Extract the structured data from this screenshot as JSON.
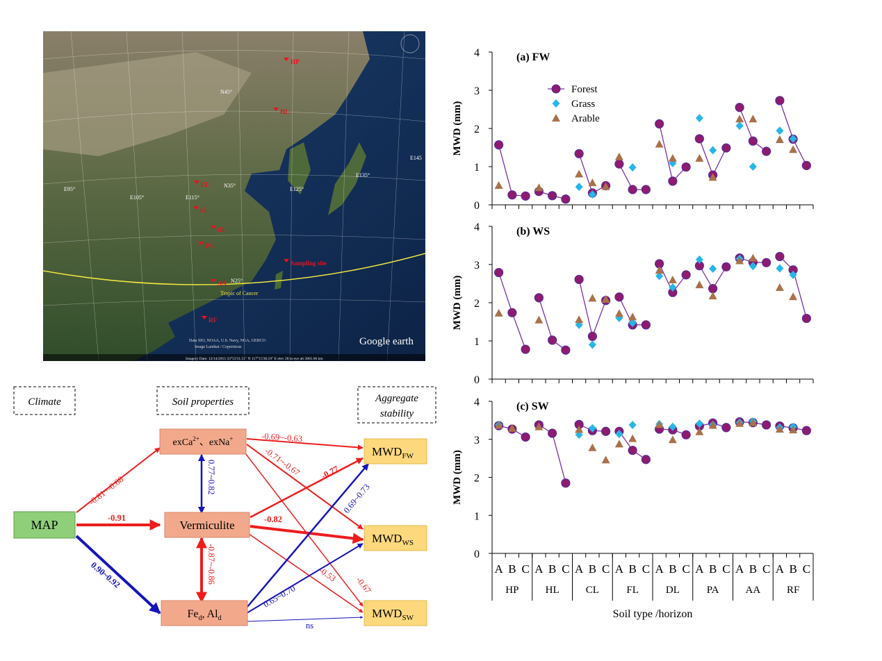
{
  "map": {
    "sites": [
      "HP",
      "HL",
      "CL",
      "FL",
      "DL",
      "PA",
      "AA",
      "RF"
    ],
    "site_legend": "Sampling site",
    "latitude_labels": [
      "N45°",
      "N35°",
      "N25°"
    ],
    "longitude_labels": [
      "E95°",
      "E105°",
      "E115°",
      "E125°",
      "E135°",
      "E145"
    ],
    "tropic_label": "Tropic of Cancer",
    "credits": "Data SIO, NOAA, U.S. Navy, NGA, GEBCO",
    "credits2": "Image Landsat / Copernicus",
    "status_bar": "Imagery Date: 12/14/2015   33°53'31.51\" N 117°15'38.19\" E elev  28 m   eye alt 3801.06 km",
    "logo": "Google earth"
  },
  "diagram": {
    "group_titles": {
      "climate": "Climate",
      "soil": "Soil properties",
      "agg1": "Aggregate",
      "agg2": "stability"
    },
    "nodes": {
      "map": "MAP",
      "ex_a": "exCa",
      "ex_sup_a": "2+",
      "ex_mid": "、exNa",
      "ex_sup_b": "+",
      "verm": "Vermiculite",
      "fe_a": "Fe",
      "fe_sub_a": "d",
      "fe_mid": ", Al",
      "fe_sub_b": "d",
      "mwd": "MWD",
      "sub_fw": "FW",
      "sub_ws": "WS",
      "sub_sw": "SW"
    },
    "edge_labels": {
      "map_ex": "-0.81~-0.68",
      "map_verm": "-0.91",
      "map_fe": "0.90~0.92",
      "ex_verm": "0.77~0.82",
      "verm_fe": "-0.87~-0.86",
      "ex_fw": "-0.69~-0.63",
      "ex_ws": "-0.71~-0.67",
      "verm_fw": "-0.77",
      "verm_ws": "-0.82",
      "verm_sw": "-0.53",
      "ex_sw": "-0.67",
      "fe_fw": "0.69~0.73",
      "fe_ws": "0.65~0.70",
      "fe_sw": "ns"
    },
    "colors": {
      "negative": "#ee1c1c",
      "positive": "#1515bb",
      "map_fill": "#8fcf7a",
      "soil_fill": "#f2a98b",
      "mwd_fill": "#fed87d"
    }
  },
  "chart_data": [
    {
      "type": "scatter",
      "title": "(a) FW",
      "ylabel": "MWD (mm)",
      "ylim": [
        0,
        4
      ],
      "yticks": [
        "0",
        "1",
        "2",
        "3",
        "4"
      ],
      "soil_types": [
        "HP",
        "HL",
        "CL",
        "FL",
        "DL",
        "PA",
        "AA",
        "RF"
      ],
      "horizons": [
        "A",
        "B",
        "C"
      ],
      "series": [
        {
          "name": "Forest",
          "values": [
            1.57,
            0.26,
            0.23,
            0.35,
            0.24,
            0.15,
            1.34,
            0.31,
            0.5,
            1.07,
            0.4,
            0.4,
            2.12,
            0.62,
            0.99,
            1.73,
            0.78,
            1.49,
            2.55,
            1.67,
            1.4,
            2.73,
            1.72,
            1.03
          ]
        },
        {
          "name": "Grass",
          "values": [
            null,
            null,
            null,
            null,
            null,
            null,
            0.47,
            0.27,
            null,
            null,
            0.98,
            null,
            null,
            1.09,
            null,
            2.27,
            1.43,
            null,
            2.07,
            1.0,
            null,
            1.94,
            1.73,
            null
          ]
        },
        {
          "name": "Arable",
          "values": [
            0.51,
            null,
            null,
            0.45,
            null,
            null,
            0.81,
            0.58,
            0.48,
            1.26,
            null,
            null,
            1.59,
            1.22,
            null,
            1.22,
            0.72,
            null,
            2.25,
            2.25,
            null,
            1.71,
            1.45,
            null
          ]
        }
      ]
    },
    {
      "type": "scatter",
      "title": "(b) WS",
      "ylabel": "MWD (mm)",
      "ylim": [
        0,
        4
      ],
      "yticks": [
        "0",
        "1",
        "2",
        "3",
        "4"
      ],
      "soil_types": [
        "HP",
        "HL",
        "CL",
        "FL",
        "DL",
        "PA",
        "AA",
        "RF"
      ],
      "horizons": [
        "A",
        "B",
        "C"
      ],
      "series": [
        {
          "name": "Forest",
          "values": [
            2.79,
            1.74,
            0.78,
            2.13,
            1.02,
            0.76,
            2.61,
            1.12,
            2.06,
            2.15,
            1.42,
            1.42,
            3.02,
            2.27,
            2.73,
            2.97,
            2.37,
            2.94,
            3.17,
            3.06,
            3.05,
            3.21,
            2.86,
            1.59
          ]
        },
        {
          "name": "Grass",
          "values": [
            null,
            null,
            null,
            null,
            null,
            null,
            1.42,
            0.9,
            null,
            1.6,
            1.47,
            null,
            2.7,
            2.4,
            null,
            3.13,
            2.89,
            null,
            3.15,
            2.96,
            null,
            2.9,
            2.73,
            null
          ]
        },
        {
          "name": "Arable",
          "values": [
            1.73,
            null,
            null,
            1.55,
            null,
            null,
            1.56,
            2.12,
            2.09,
            1.72,
            1.63,
            null,
            2.85,
            2.6,
            null,
            2.47,
            2.18,
            null,
            3.1,
            3.17,
            null,
            2.4,
            2.16,
            null
          ]
        }
      ]
    },
    {
      "type": "scatter",
      "title": "(c) SW",
      "ylabel": "MWD (mm)",
      "ylim": [
        0,
        4
      ],
      "yticks": [
        "0",
        "1",
        "2",
        "3",
        "4"
      ],
      "xlabel": "Soil type /horizon",
      "soil_types": [
        "HP",
        "HL",
        "CL",
        "FL",
        "DL",
        "PA",
        "AA",
        "RF"
      ],
      "horizons": [
        "A",
        "B",
        "C"
      ],
      "series": [
        {
          "name": "Forest",
          "values": [
            3.36,
            3.27,
            3.06,
            3.38,
            3.16,
            1.85,
            3.39,
            3.23,
            3.21,
            3.21,
            2.71,
            2.47,
            3.27,
            3.25,
            3.12,
            3.35,
            3.43,
            3.31,
            3.46,
            3.44,
            3.38,
            3.35,
            3.3,
            3.23
          ]
        },
        {
          "name": "Grass",
          "values": [
            3.38,
            null,
            null,
            null,
            null,
            null,
            3.12,
            3.29,
            null,
            3.14,
            3.38,
            null,
            3.4,
            3.33,
            null,
            3.41,
            3.38,
            null,
            3.44,
            3.47,
            null,
            3.31,
            3.33,
            null
          ]
        },
        {
          "name": "Arable",
          "values": [
            3.37,
            3.29,
            null,
            3.33,
            null,
            null,
            3.26,
            2.78,
            2.46,
            2.88,
            3.02,
            null,
            3.39,
            2.99,
            null,
            3.2,
            3.37,
            null,
            3.42,
            3.44,
            null,
            3.27,
            3.25,
            null
          ]
        }
      ]
    }
  ]
}
